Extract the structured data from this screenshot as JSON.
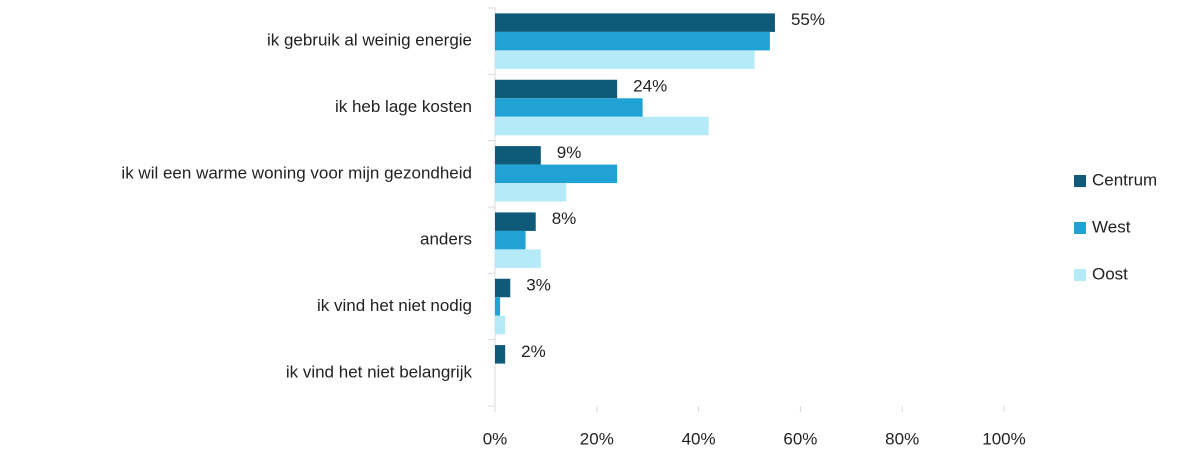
{
  "chart_data": {
    "type": "bar",
    "orientation": "horizontal",
    "categories": [
      "ik gebruik al weinig energie",
      "ik heb lage kosten",
      "ik wil een warme woning voor mijn gezondheid",
      "anders",
      "ik vind het niet nodig",
      "ik vind het niet belangrijk"
    ],
    "series": [
      {
        "name": "Centrum",
        "color": "#0e5a78",
        "values": [
          55,
          24,
          9,
          8,
          3,
          2
        ],
        "value_labels": [
          "55%",
          "24%",
          "9%",
          "8%",
          "3%",
          "2%"
        ]
      },
      {
        "name": "West",
        "color": "#20a2d4",
        "values": [
          54,
          29,
          24,
          6,
          1,
          0
        ]
      },
      {
        "name": "Oost",
        "color": "#b5eaf9",
        "values": [
          51,
          42,
          14,
          9,
          2,
          0
        ]
      }
    ],
    "xlim": [
      0,
      100
    ],
    "xticks": [
      {
        "value": 0,
        "label": "0%"
      },
      {
        "value": 20,
        "label": "20%"
      },
      {
        "value": 40,
        "label": "40%"
      },
      {
        "value": 60,
        "label": "60%"
      },
      {
        "value": 80,
        "label": "80%"
      },
      {
        "value": 100,
        "label": "100%"
      }
    ],
    "legend": "right"
  }
}
